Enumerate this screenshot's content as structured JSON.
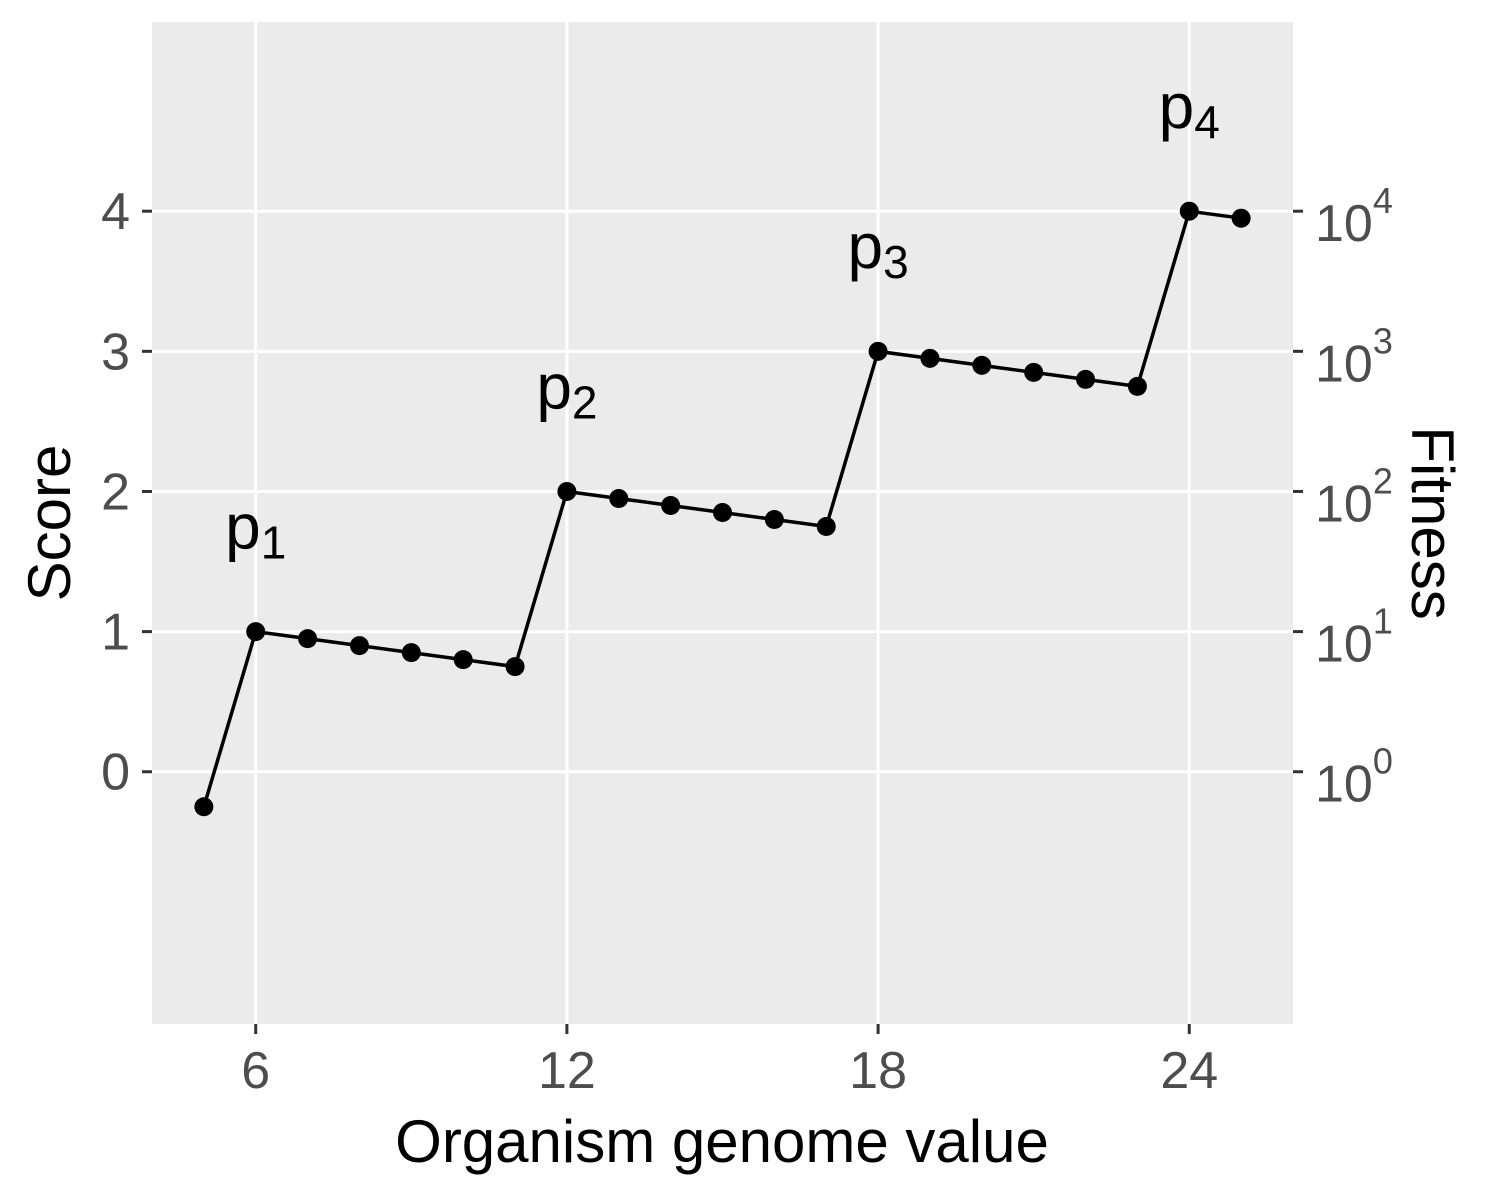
{
  "chart_data": {
    "type": "line",
    "title": "",
    "xlabel": "Organism genome value",
    "ylabel": "Score",
    "y2label": "Fitness",
    "xlim": [
      4,
      26
    ],
    "ylim": [
      -1.8,
      5.35
    ],
    "x_ticks": [
      6,
      12,
      18,
      24
    ],
    "y_ticks": [
      0,
      1,
      2,
      3,
      4
    ],
    "y2_ticks": [
      {
        "score": 0,
        "base": "10",
        "exp": "0"
      },
      {
        "score": 1,
        "base": "10",
        "exp": "1"
      },
      {
        "score": 2,
        "base": "10",
        "exp": "2"
      },
      {
        "score": 3,
        "base": "10",
        "exp": "3"
      },
      {
        "score": 4,
        "base": "10",
        "exp": "4"
      }
    ],
    "y2_scale": "log10",
    "grid": true,
    "series": [
      {
        "x": [
          5,
          6,
          7,
          8,
          9,
          10,
          11,
          12,
          13,
          14,
          15,
          16,
          17,
          18,
          19,
          20,
          21,
          22,
          23,
          24,
          25
        ],
        "y": [
          -0.25,
          1.0,
          0.95,
          0.9,
          0.85,
          0.8,
          0.75,
          2.0,
          1.95,
          1.9,
          1.85,
          1.8,
          1.75,
          3.0,
          2.95,
          2.9,
          2.85,
          2.8,
          2.75,
          4.0,
          3.95
        ]
      }
    ],
    "annotations": [
      {
        "base": "p",
        "sub": "1",
        "x": 6,
        "y": 1.75
      },
      {
        "base": "p",
        "sub": "2",
        "x": 12,
        "y": 2.75
      },
      {
        "base": "p",
        "sub": "3",
        "x": 18,
        "y": 3.75
      },
      {
        "base": "p",
        "sub": "4",
        "x": 24,
        "y": 4.75
      }
    ],
    "colors": {
      "panel": "#ebebeb",
      "grid": "#ffffff",
      "line": "#000000",
      "point": "#000000"
    }
  }
}
